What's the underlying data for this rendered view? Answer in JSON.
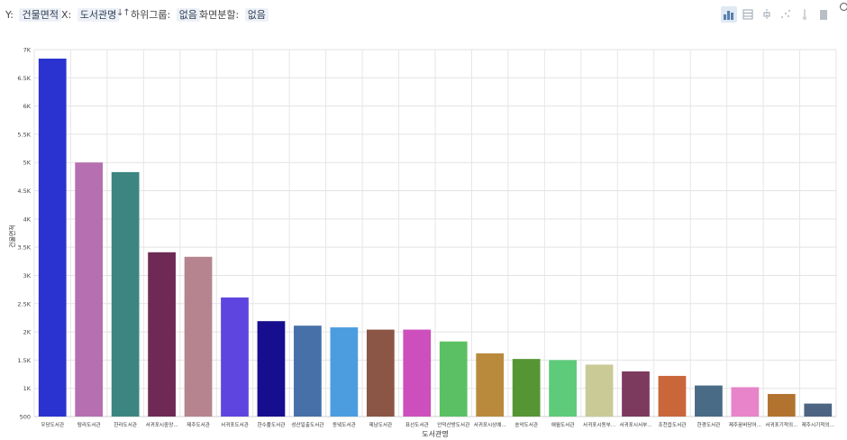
{
  "toolbar": {
    "y_key": "Y:",
    "y_value": "건물면적",
    "x_key": "X:",
    "x_value": "도서관명",
    "sort_glyph": "↓↑",
    "group_key": "하위그룹:",
    "group_value": "없음",
    "split_key": "화면분할:",
    "split_value": "없음",
    "tools": [
      "bar-chart-icon",
      "table-icon",
      "box-plot-icon",
      "scatter-icon",
      "thermometer-icon",
      "export-icon"
    ]
  },
  "chart_data": {
    "type": "bar",
    "xlabel": "도서관명",
    "ylabel": "건물면적",
    "ylim": [
      500,
      7000
    ],
    "yticks": [
      500,
      1000,
      1500,
      2000,
      2500,
      3000,
      3500,
      4000,
      4500,
      5000,
      5500,
      6000,
      6500,
      7000
    ],
    "ytick_labels": [
      "500",
      "1K",
      "1.5K",
      "2K",
      "2.5K",
      "3K",
      "3.5K",
      "4K",
      "4.5K",
      "5K",
      "5.5K",
      "6K",
      "6.5K",
      "7K"
    ],
    "grid": true,
    "categories": [
      "우당도서관",
      "탐라도서관",
      "한라도서관",
      "서귀포시중앙...",
      "제주도서관",
      "서귀포도서관",
      "한수풀도서관",
      "성산일출도서관",
      "동녘도서관",
      "제남도서관",
      "표선도서관",
      "안덕산방도서관",
      "서귀포시상예...",
      "송악도서관",
      "애월도서관",
      "서귀포시동부...",
      "서귀포시서부...",
      "조천읍도서관",
      "한경도서관",
      "제주꿈바당어...",
      "서귀포기적의...",
      "제주시기적의..."
    ],
    "values": [
      6840,
      5000,
      4830,
      3410,
      3330,
      2610,
      2190,
      2110,
      2080,
      2040,
      2040,
      1830,
      1620,
      1520,
      1500,
      1420,
      1300,
      1220,
      1050,
      1020,
      900,
      730
    ],
    "colors": [
      "#2a32cf",
      "#b66fb0",
      "#3d8580",
      "#6e2a55",
      "#b5848f",
      "#5f45df",
      "#160e8e",
      "#4770a8",
      "#4c9de0",
      "#8b5646",
      "#cc4fbd",
      "#5bc063",
      "#ba8a3c",
      "#559534",
      "#5dcb79",
      "#c9ca96",
      "#7d3a5f",
      "#c9673b",
      "#4a6b85",
      "#e884c9",
      "#b37330",
      "#4e6483"
    ]
  }
}
